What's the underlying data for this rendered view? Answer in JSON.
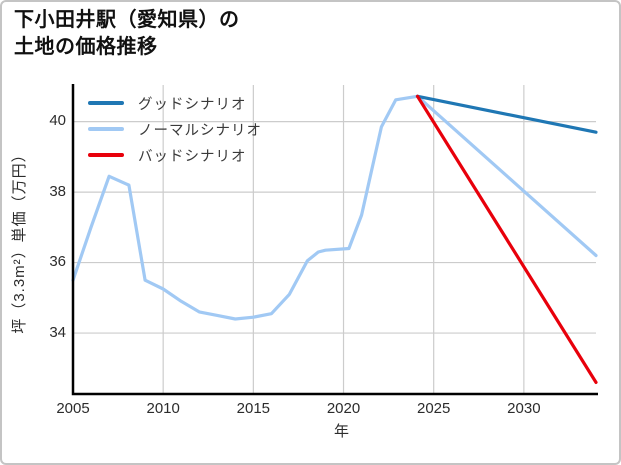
{
  "frame": {
    "background": "#ffffff",
    "border_color": "#c4c4c4"
  },
  "chart_data": {
    "type": "line",
    "title": "下小田井駅（愛知県）の土地の価格推移",
    "title_lines": [
      "下小田井駅（愛知県）の",
      "土地の価格推移"
    ],
    "xlabel": "年",
    "ylabel": "坪（3.3m²）単価（万円）",
    "xlim": [
      2005,
      2034
    ],
    "ylim": [
      32.27,
      41.04
    ],
    "x_ticks": [
      2005,
      2010,
      2015,
      2020,
      2025,
      2030
    ],
    "y_ticks": [
      34,
      36,
      38,
      40
    ],
    "grid": true,
    "grid_color": "#cccccc",
    "axis_color": "#000000",
    "legend_position": "upper-left",
    "legend": [
      {
        "label": "グッドシナリオ",
        "color": "#1f77b4"
      },
      {
        "label": "ノーマルシナリオ",
        "color": "#a1c9f4"
      },
      {
        "label": "バッドシナリオ",
        "color": "#e8000b"
      }
    ],
    "series": [
      {
        "id": "normal-scenario-line",
        "name": "ノーマルシナリオ",
        "color": "#a1c9f4",
        "points": [
          [
            2005,
            35.5
          ],
          [
            2006,
            37.0
          ],
          [
            2007,
            38.45
          ],
          [
            2008.1,
            38.2
          ],
          [
            2009,
            35.5
          ],
          [
            2010,
            35.25
          ],
          [
            2011,
            34.9
          ],
          [
            2012,
            34.6
          ],
          [
            2013,
            34.5
          ],
          [
            2014,
            34.4
          ],
          [
            2015,
            34.45
          ],
          [
            2016,
            34.55
          ],
          [
            2017,
            35.1
          ],
          [
            2018,
            36.05
          ],
          [
            2018.6,
            36.3
          ],
          [
            2019,
            36.35
          ],
          [
            2020.3,
            36.4
          ],
          [
            2021,
            37.35
          ],
          [
            2022.1,
            39.85
          ],
          [
            2022.9,
            40.62
          ],
          [
            2024.1,
            40.72
          ],
          [
            2034,
            36.2
          ]
        ]
      },
      {
        "id": "good-scenario-line",
        "name": "グッドシナリオ",
        "color": "#1f77b4",
        "points": [
          [
            2024.1,
            40.72
          ],
          [
            2034,
            39.7
          ]
        ]
      },
      {
        "id": "bad-scenario-line",
        "name": "バッドシナリオ",
        "color": "#e8000b",
        "points": [
          [
            2024.1,
            40.72
          ],
          [
            2034,
            32.6
          ]
        ]
      }
    ]
  }
}
